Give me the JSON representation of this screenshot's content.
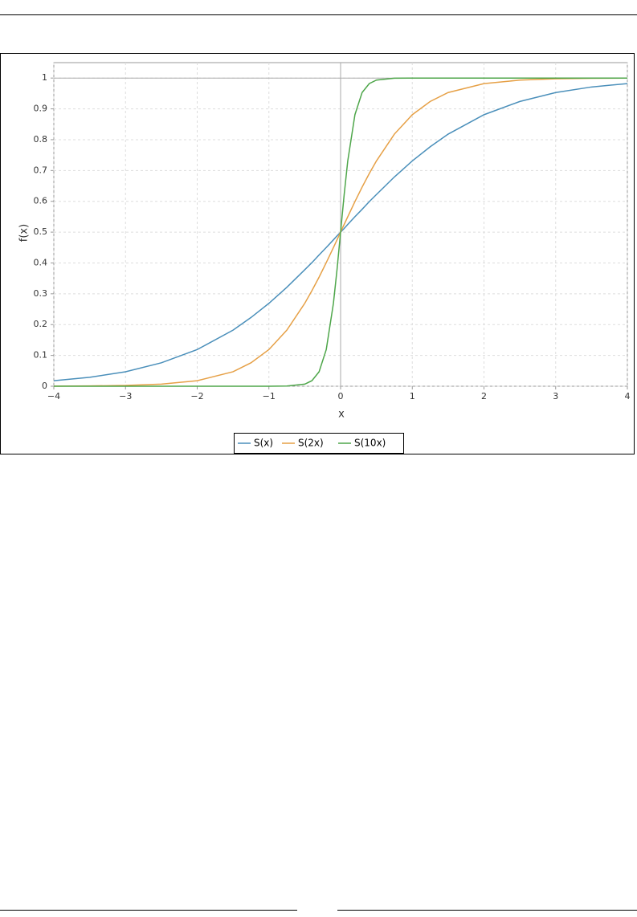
{
  "chart_data": {
    "type": "line",
    "x_label": "x",
    "y_label": "f(x)",
    "x": [
      -4,
      -3.5,
      -3,
      -2.5,
      -2,
      -1.5,
      -1.25,
      -1,
      -0.75,
      -0.5,
      -0.4,
      -0.3,
      -0.2,
      -0.1,
      -0.05,
      0,
      0.05,
      0.1,
      0.2,
      0.3,
      0.4,
      0.5,
      0.75,
      1,
      1.25,
      1.5,
      2,
      2.5,
      3,
      3.5,
      4
    ],
    "series": [
      {
        "name": "S(x)",
        "color": "#4a8fba",
        "values": [
          0.018,
          0.029,
          0.047,
          0.076,
          0.119,
          0.182,
          0.223,
          0.269,
          0.321,
          0.378,
          0.401,
          0.426,
          0.45,
          0.475,
          0.488,
          0.5,
          0.512,
          0.525,
          0.55,
          0.574,
          0.599,
          0.622,
          0.679,
          0.731,
          0.777,
          0.818,
          0.881,
          0.924,
          0.953,
          0.971,
          0.982
        ]
      },
      {
        "name": "S(2x)",
        "color": "#e6a046",
        "values": [
          0.0003,
          0.0009,
          0.0025,
          0.0067,
          0.018,
          0.047,
          0.076,
          0.119,
          0.182,
          0.269,
          0.31,
          0.354,
          0.401,
          0.45,
          0.475,
          0.5,
          0.525,
          0.55,
          0.599,
          0.646,
          0.69,
          0.731,
          0.818,
          0.881,
          0.924,
          0.953,
          0.982,
          0.9933,
          0.9975,
          0.9991,
          0.9997
        ]
      },
      {
        "name": "S(10x)",
        "color": "#4ea64a",
        "values": [
          0,
          0,
          0,
          0,
          0,
          0,
          0,
          0,
          0.0006,
          0.0067,
          0.018,
          0.047,
          0.119,
          0.269,
          0.378,
          0.5,
          0.622,
          0.731,
          0.881,
          0.953,
          0.982,
          0.9933,
          0.9994,
          1,
          1,
          1,
          1,
          1,
          1,
          1,
          1
        ]
      }
    ],
    "xlim": [
      -4,
      4
    ],
    "xticks": [
      {
        "value": -4,
        "label": "−4"
      },
      {
        "value": -3,
        "label": "−3"
      },
      {
        "value": -2,
        "label": "−2"
      },
      {
        "value": -1,
        "label": "−1"
      },
      0,
      1,
      2,
      3,
      4
    ],
    "ylim": [
      0,
      1.05
    ],
    "yticks": [
      0,
      0.1,
      0.2,
      0.3,
      0.4,
      0.5,
      0.6,
      0.7,
      0.8,
      0.9,
      1
    ],
    "grid": true,
    "legend": "bottom"
  }
}
